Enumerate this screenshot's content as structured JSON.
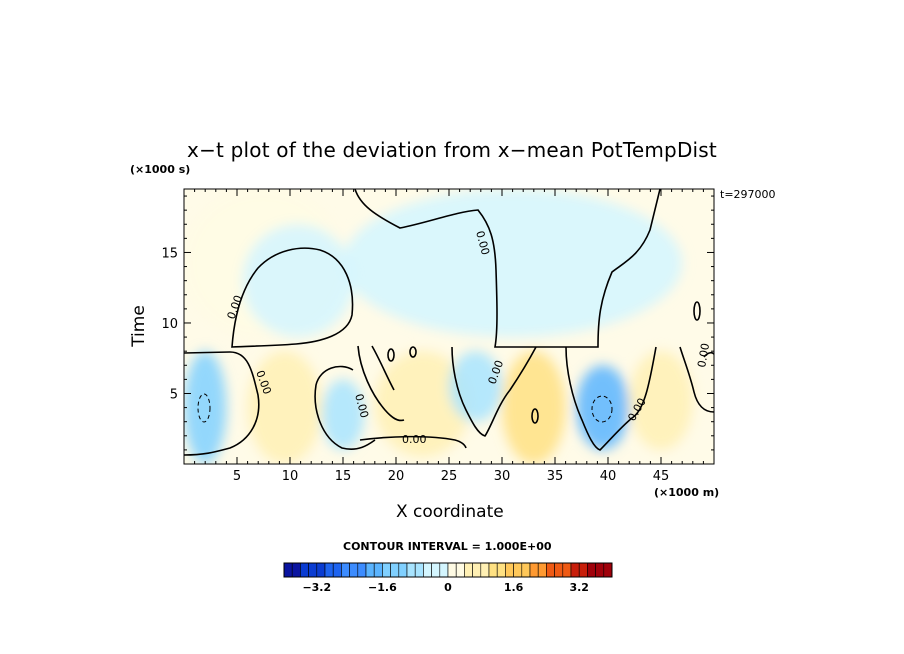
{
  "chart_data": {
    "type": "heatmap",
    "title": "x−t plot of the deviation from x−mean PotTempDist",
    "xlabel": "X coordinate",
    "ylabel": "Time",
    "x_units": "(×1000 m)",
    "y_units": "(×1000 s)",
    "time_stamp": "t=297000",
    "xlim": [
      0,
      50
    ],
    "ylim": [
      0,
      19.5
    ],
    "x_ticks": [
      5,
      10,
      15,
      20,
      25,
      30,
      35,
      40,
      45
    ],
    "y_ticks": [
      5,
      10,
      15
    ],
    "contour_label": "0.00",
    "contour_interval_text": "CONTOUR INTERVAL = 1.000E+00",
    "colorbar": {
      "range": [
        -4,
        4
      ],
      "n_colors": 40,
      "tick_values": [
        -3.2,
        -1.6,
        0,
        1.6,
        3.2
      ],
      "tick_labels": [
        "−3.2",
        "−1.6",
        "0",
        "1.6",
        "3.2"
      ],
      "colors": [
        "#0a14a0",
        "#0a3cd2",
        "#1e64f0",
        "#3c8cff",
        "#5ab4ff",
        "#80d0ff",
        "#a8e4ff",
        "#d4f6ff",
        "#fffbe4",
        "#fff0b4",
        "#ffe182",
        "#ffc85a",
        "#ff9a32",
        "#f05a14",
        "#c81e0a",
        "#a0000a"
      ]
    },
    "regions": [
      {
        "name": "upper-cool",
        "value": -0.4,
        "x": [
          15,
          47
        ],
        "t": [
          9,
          19.5
        ]
      },
      {
        "name": "upper-warm-left",
        "value": 0.3,
        "x": [
          0,
          15
        ],
        "t": [
          9,
          19.5
        ]
      },
      {
        "name": "bubble-cool",
        "value": -0.5,
        "x": [
          5.5,
          16
        ],
        "t": [
          9,
          17
        ]
      },
      {
        "name": "lower-cool-left",
        "value": -1.2,
        "x": [
          0,
          4
        ],
        "t": [
          0,
          8
        ]
      },
      {
        "name": "lower-warm-1",
        "value": 0.8,
        "x": [
          6,
          13
        ],
        "t": [
          0,
          8
        ]
      },
      {
        "name": "lower-cool-2",
        "value": -1.0,
        "x": [
          13,
          17
        ],
        "t": [
          1,
          6
        ]
      },
      {
        "name": "lower-warm-2",
        "value": 0.7,
        "x": [
          18,
          27
        ],
        "t": [
          0.5,
          8
        ]
      },
      {
        "name": "lower-cool-3",
        "value": -0.8,
        "x": [
          25,
          30
        ],
        "t": [
          3,
          8
        ]
      },
      {
        "name": "lower-warm-3",
        "value": 1.0,
        "x": [
          30,
          36
        ],
        "t": [
          0,
          8
        ]
      },
      {
        "name": "lower-cool-4",
        "value": -1.6,
        "x": [
          37,
          42
        ],
        "t": [
          1,
          7
        ]
      },
      {
        "name": "lower-warm-4",
        "value": 0.6,
        "x": [
          42,
          48
        ],
        "t": [
          1,
          8
        ]
      }
    ]
  }
}
